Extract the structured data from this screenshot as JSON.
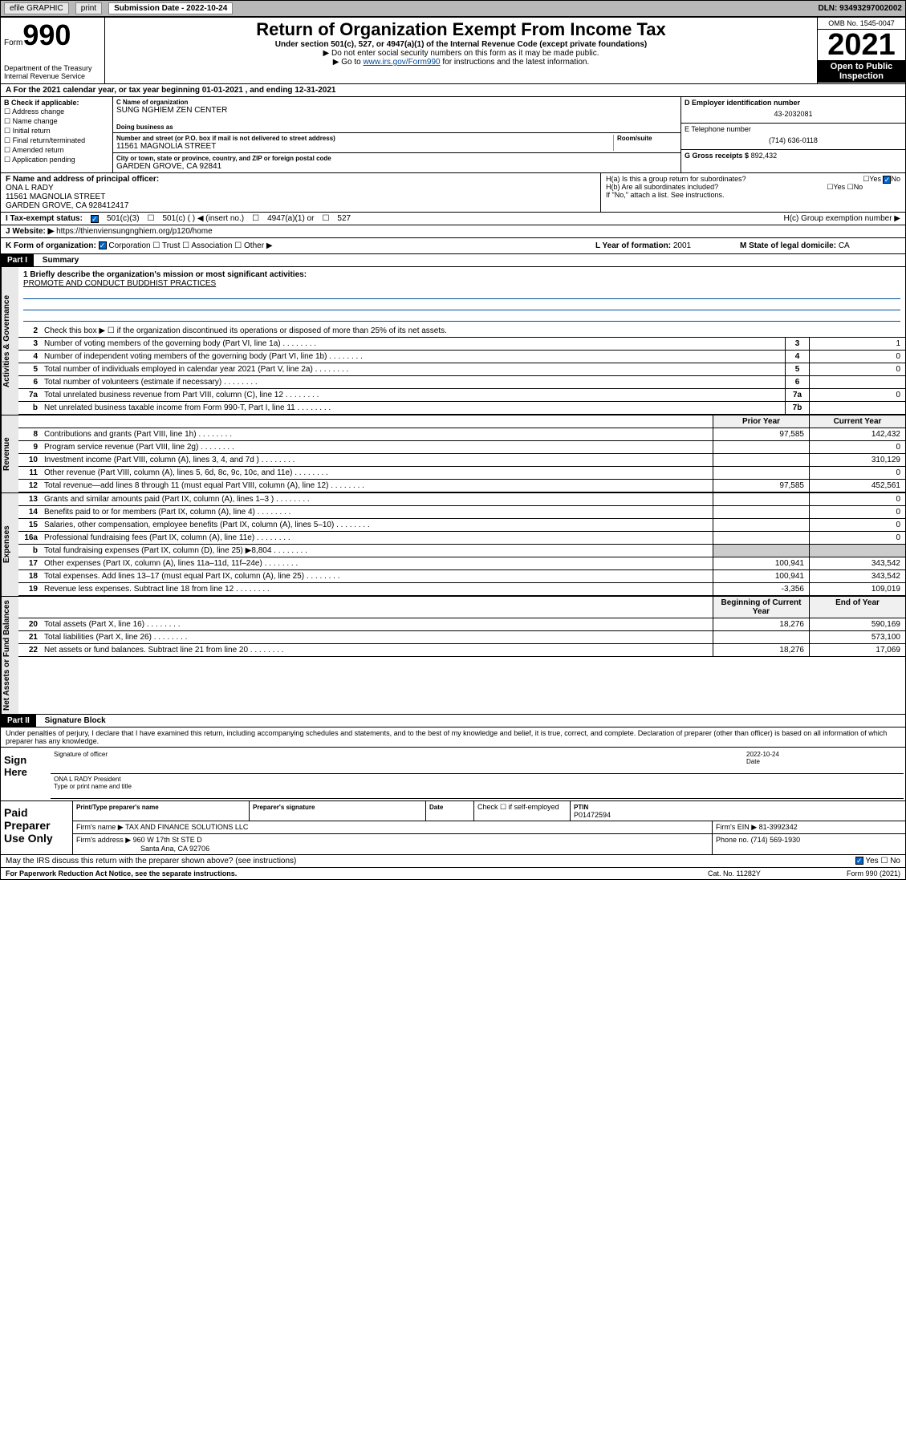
{
  "top_bar": {
    "efile": "efile GRAPHIC",
    "print": "print",
    "submission": "Submission Date - 2022-10-24",
    "dln": "DLN: 93493297002002"
  },
  "header": {
    "form_word": "Form",
    "form_num": "990",
    "title": "Return of Organization Exempt From Income Tax",
    "subtitle": "Under section 501(c), 527, or 4947(a)(1) of the Internal Revenue Code (except private foundations)",
    "inst1": "▶ Do not enter social security numbers on this form as it may be made public.",
    "inst2_pre": "▶ Go to ",
    "inst2_link": "www.irs.gov/Form990",
    "inst2_post": " for instructions and the latest information.",
    "dept": "Department of the Treasury\nInternal Revenue Service",
    "omb": "OMB No. 1545-0047",
    "year": "2021",
    "public": "Open to Public Inspection"
  },
  "period": "A For the 2021 calendar year, or tax year beginning 01-01-2021   , and ending 12-31-2021",
  "section_b": {
    "label": "B Check if applicable:",
    "items": [
      "Address change",
      "Name change",
      "Initial return",
      "Final return/terminated",
      "Amended return",
      "Application pending"
    ]
  },
  "section_c": {
    "name_label": "C Name of organization",
    "name": "SUNG NGHIEM ZEN CENTER",
    "dba_label": "Doing business as",
    "addr_label": "Number and street (or P.O. box if mail is not delivered to street address)",
    "room_label": "Room/suite",
    "addr": "11561 MAGNOLIA STREET",
    "city_label": "City or town, state or province, country, and ZIP or foreign postal code",
    "city": "GARDEN GROVE, CA  92841"
  },
  "section_d": {
    "label": "D Employer identification number",
    "val": "43-2032081"
  },
  "section_e": {
    "label": "E Telephone number",
    "val": "(714) 636-0118"
  },
  "section_g": {
    "label": "G Gross receipts $",
    "val": "892,432"
  },
  "section_f": {
    "label": "F Name and address of principal officer:",
    "name": "ONA L RADY",
    "addr1": "11561 MAGNOLIA STREET",
    "addr2": "GARDEN GROVE, CA  928412417"
  },
  "section_h": {
    "ha": "H(a)  Is this a group return for subordinates?",
    "hb": "H(b)  Are all subordinates included?",
    "hb_note": "If \"No,\" attach a list. See instructions.",
    "hc": "H(c)  Group exemption number ▶",
    "yes": "Yes",
    "no": "No"
  },
  "section_i": {
    "label": "I   Tax-exempt status:",
    "c501c3": "501(c)(3)",
    "c501c": "501(c) (  ) ◀ (insert no.)",
    "c4947": "4947(a)(1) or",
    "c527": "527"
  },
  "section_j": {
    "label": "J   Website: ▶",
    "url": "https://thienviensungnghiem.org/p120/home"
  },
  "section_k": {
    "label": "K Form of organization:",
    "corp": "Corporation",
    "trust": "Trust",
    "assoc": "Association",
    "other": "Other ▶"
  },
  "section_l": {
    "label": "L Year of formation:",
    "val": "2001"
  },
  "section_m": {
    "label": "M State of legal domicile:",
    "val": "CA"
  },
  "part1": {
    "header": "Part I",
    "title": "Summary",
    "mission_label": "1  Briefly describe the organization's mission or most significant activities:",
    "mission": "PROMOTE AND CONDUCT BUDDHIST PRACTICES",
    "line2": "Check this box ▶ ☐ if the organization discontinued its operations or disposed of more than 25% of its net assets.",
    "vert_gov": "Activities & Governance",
    "vert_rev": "Revenue",
    "vert_exp": "Expenses",
    "vert_net": "Net Assets or Fund Balances",
    "prior": "Prior Year",
    "current": "Current Year",
    "begin": "Beginning of Current Year",
    "end": "End of Year",
    "rows_gov": [
      {
        "n": "3",
        "t": "Number of voting members of the governing body (Part VI, line 1a)",
        "box": "3",
        "val": "1"
      },
      {
        "n": "4",
        "t": "Number of independent voting members of the governing body (Part VI, line 1b)",
        "box": "4",
        "val": "0"
      },
      {
        "n": "5",
        "t": "Total number of individuals employed in calendar year 2021 (Part V, line 2a)",
        "box": "5",
        "val": "0"
      },
      {
        "n": "6",
        "t": "Total number of volunteers (estimate if necessary)",
        "box": "6",
        "val": ""
      },
      {
        "n": "7a",
        "t": "Total unrelated business revenue from Part VIII, column (C), line 12",
        "box": "7a",
        "val": "0"
      },
      {
        "n": "b",
        "t": "Net unrelated business taxable income from Form 990-T, Part I, line 11",
        "box": "7b",
        "val": ""
      }
    ],
    "rows_rev": [
      {
        "n": "8",
        "t": "Contributions and grants (Part VIII, line 1h)",
        "p": "97,585",
        "c": "142,432"
      },
      {
        "n": "9",
        "t": "Program service revenue (Part VIII, line 2g)",
        "p": "",
        "c": "0"
      },
      {
        "n": "10",
        "t": "Investment income (Part VIII, column (A), lines 3, 4, and 7d )",
        "p": "",
        "c": "310,129"
      },
      {
        "n": "11",
        "t": "Other revenue (Part VIII, column (A), lines 5, 6d, 8c, 9c, 10c, and 11e)",
        "p": "",
        "c": "0"
      },
      {
        "n": "12",
        "t": "Total revenue—add lines 8 through 11 (must equal Part VIII, column (A), line 12)",
        "p": "97,585",
        "c": "452,561"
      }
    ],
    "rows_exp": [
      {
        "n": "13",
        "t": "Grants and similar amounts paid (Part IX, column (A), lines 1–3 )",
        "p": "",
        "c": "0"
      },
      {
        "n": "14",
        "t": "Benefits paid to or for members (Part IX, column (A), line 4)",
        "p": "",
        "c": "0"
      },
      {
        "n": "15",
        "t": "Salaries, other compensation, employee benefits (Part IX, column (A), lines 5–10)",
        "p": "",
        "c": "0"
      },
      {
        "n": "16a",
        "t": "Professional fundraising fees (Part IX, column (A), line 11e)",
        "p": "",
        "c": "0"
      },
      {
        "n": "b",
        "t": "Total fundraising expenses (Part IX, column (D), line 25) ▶8,804",
        "p": "SHADE",
        "c": "SHADE"
      },
      {
        "n": "17",
        "t": "Other expenses (Part IX, column (A), lines 11a–11d, 11f–24e)",
        "p": "100,941",
        "c": "343,542"
      },
      {
        "n": "18",
        "t": "Total expenses. Add lines 13–17 (must equal Part IX, column (A), line 25)",
        "p": "100,941",
        "c": "343,542"
      },
      {
        "n": "19",
        "t": "Revenue less expenses. Subtract line 18 from line 12",
        "p": "-3,356",
        "c": "109,019"
      }
    ],
    "rows_net": [
      {
        "n": "20",
        "t": "Total assets (Part X, line 16)",
        "p": "18,276",
        "c": "590,169"
      },
      {
        "n": "21",
        "t": "Total liabilities (Part X, line 26)",
        "p": "",
        "c": "573,100"
      },
      {
        "n": "22",
        "t": "Net assets or fund balances. Subtract line 21 from line 20",
        "p": "18,276",
        "c": "17,069"
      }
    ]
  },
  "part2": {
    "header": "Part II",
    "title": "Signature Block",
    "declaration": "Under penalties of perjury, I declare that I have examined this return, including accompanying schedules and statements, and to the best of my knowledge and belief, it is true, correct, and complete. Declaration of preparer (other than officer) is based on all information of which preparer has any knowledge.",
    "sign_here": "Sign Here",
    "sig_officer": "Signature of officer",
    "sig_date": "Date",
    "sig_date_val": "2022-10-24",
    "officer_name": "ONA L RADY President",
    "type_name": "Type or print name and title",
    "paid": "Paid Preparer Use Only",
    "prep_name_label": "Print/Type preparer's name",
    "prep_sig_label": "Preparer's signature",
    "date_label": "Date",
    "check_self": "Check ☐ if self-employed",
    "ptin_label": "PTIN",
    "ptin": "P01472594",
    "firm_name_label": "Firm's name    ▶",
    "firm_name": "TAX AND FINANCE SOLUTIONS LLC",
    "firm_ein_label": "Firm's EIN ▶",
    "firm_ein": "81-3992342",
    "firm_addr_label": "Firm's address ▶",
    "firm_addr1": "960 W 17th St STE D",
    "firm_addr2": "Santa Ana, CA  92706",
    "phone_label": "Phone no.",
    "phone": "(714) 569-1930",
    "discuss": "May the IRS discuss this return with the preparer shown above? (see instructions)",
    "yes": "Yes",
    "no": "No"
  },
  "footer": {
    "paperwork": "For Paperwork Reduction Act Notice, see the separate instructions.",
    "cat": "Cat. No. 11282Y",
    "form": "Form 990 (2021)"
  }
}
